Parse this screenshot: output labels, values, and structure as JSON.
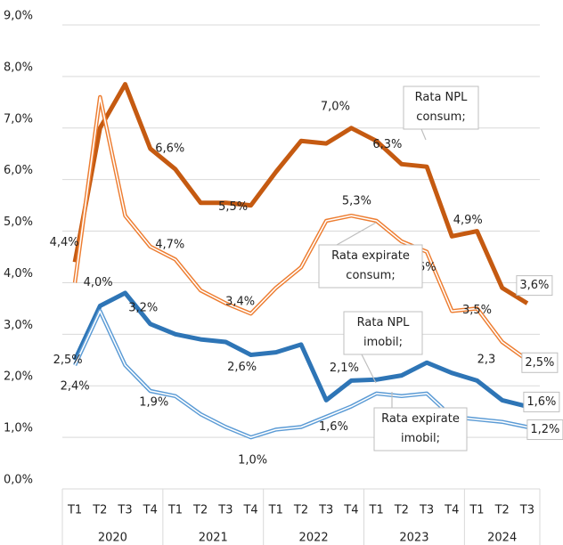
{
  "chart_data": {
    "type": "line",
    "categories": [
      "T1",
      "T2",
      "T3",
      "T4",
      "T1",
      "T2",
      "T3",
      "T4",
      "T1",
      "T2",
      "T3",
      "T4",
      "T1",
      "T2",
      "T3",
      "T4",
      "T1",
      "T2",
      "T3"
    ],
    "years": [
      "2020",
      "2021",
      "2022",
      "2023",
      "2024"
    ],
    "ylim": [
      0,
      9
    ],
    "yticks": [
      {
        "value": 0,
        "label": "0,0%"
      },
      {
        "value": 1,
        "label": "1,0%"
      },
      {
        "value": 2,
        "label": "2,0%"
      },
      {
        "value": 3,
        "label": "3,0%"
      },
      {
        "value": 4,
        "label": "4,0%"
      },
      {
        "value": 5,
        "label": "5,0%"
      },
      {
        "value": 6,
        "label": "6,0%"
      },
      {
        "value": 7,
        "label": "7,0%"
      },
      {
        "value": 8,
        "label": "8,0%"
      },
      {
        "value": 9,
        "label": "9,0%"
      }
    ],
    "grid": true,
    "annotations": [
      "2,3"
    ],
    "series": [
      {
        "name": "Rata NPL consum;",
        "color": "#c55a11",
        "style": "solid",
        "values": [
          4.4,
          7.0,
          7.85,
          6.6,
          6.2,
          5.55,
          5.55,
          5.5,
          6.15,
          6.75,
          6.7,
          7.0,
          6.75,
          6.3,
          6.25,
          4.9,
          5.0,
          3.9,
          3.6
        ],
        "value_labels": [
          "4,4%",
          null,
          null,
          "6,6%",
          null,
          null,
          null,
          "5,5%",
          null,
          null,
          null,
          "7,0%",
          null,
          "6,3%",
          null,
          "4,9%",
          null,
          null,
          "3,6%"
        ]
      },
      {
        "name": "Rata expirate consum;",
        "color": "#ed7d31",
        "style": "double",
        "values": [
          4.0,
          7.6,
          5.3,
          4.7,
          4.45,
          3.85,
          3.6,
          3.4,
          3.9,
          4.3,
          5.2,
          5.3,
          5.2,
          4.8,
          4.6,
          3.45,
          3.5,
          2.85,
          2.5
        ],
        "value_labels": [
          "4,0%",
          null,
          null,
          "4,7%",
          null,
          null,
          null,
          "3,4%",
          null,
          null,
          null,
          "5,3%",
          null,
          null,
          "4,6%",
          null,
          "3,5%",
          null,
          "2,5%"
        ]
      },
      {
        "name": "Rata NPL imobil;",
        "color": "#2e75b6",
        "style": "solid",
        "values": [
          2.5,
          3.55,
          3.8,
          3.2,
          3.0,
          2.9,
          2.85,
          2.6,
          2.65,
          2.8,
          1.72,
          2.1,
          2.12,
          2.2,
          2.45,
          2.25,
          2.1,
          1.72,
          1.6
        ],
        "value_labels": [
          "2,5%",
          null,
          null,
          "3,2%",
          null,
          null,
          null,
          "2,6%",
          null,
          null,
          null,
          "2,1%",
          null,
          null,
          null,
          null,
          null,
          null,
          "1,6%"
        ]
      },
      {
        "name": "Rata expirate imobil;",
        "color": "#5b9bd5",
        "style": "double",
        "values": [
          2.4,
          3.45,
          2.4,
          1.9,
          1.8,
          1.45,
          1.2,
          1.0,
          1.15,
          1.2,
          1.4,
          1.6,
          1.85,
          1.8,
          1.85,
          1.4,
          1.35,
          1.3,
          1.2
        ],
        "value_labels": [
          "2,4%",
          null,
          null,
          "1,9%",
          null,
          null,
          null,
          "1,0%",
          null,
          null,
          null,
          "1,6%",
          null,
          null,
          null,
          null,
          null,
          null,
          "1,2%"
        ]
      }
    ]
  }
}
